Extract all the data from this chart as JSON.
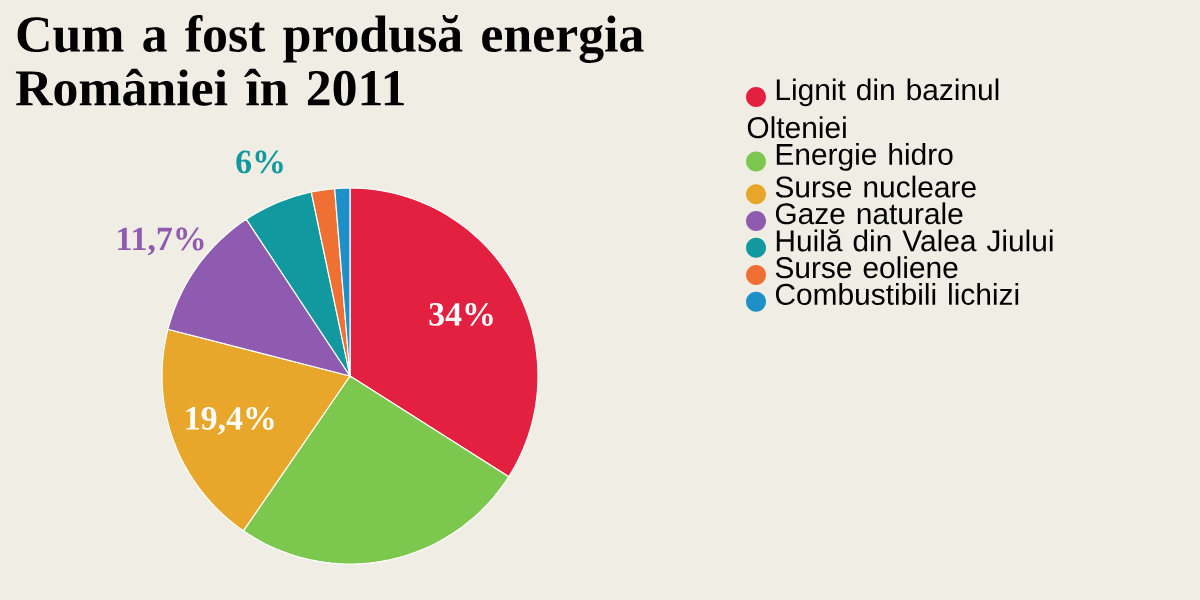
{
  "chart_data": {
    "type": "pie",
    "title": "Cum a fost produsă energia României în 2011",
    "categories": [
      "Lignit din bazinul Olteniei",
      "Energie hidro",
      "Surse nucleare",
      "Gaze naturale",
      "Huilă din Valea Jiului",
      "Surse eoliene",
      "Combustibili lichizi"
    ],
    "values": [
      34,
      25.6,
      19.4,
      11.7,
      6,
      2,
      1.3
    ],
    "colors": [
      "#e3203f",
      "#7cc84f",
      "#e8a72a",
      "#8e5bb0",
      "#12999f",
      "#f07033",
      "#1e90c8"
    ],
    "value_labels": [
      "34%",
      null,
      "19,4%",
      "11,7%",
      "6%",
      null,
      null
    ],
    "legend": "right"
  }
}
